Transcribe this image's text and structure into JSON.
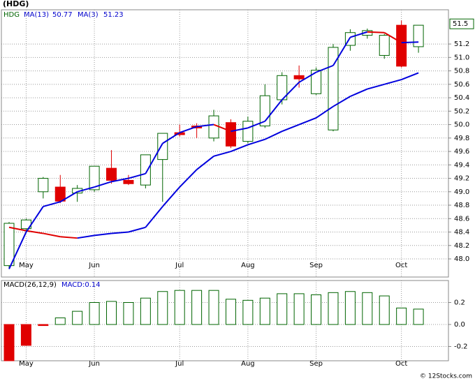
{
  "chart_data": [
    {
      "type": "candlestick",
      "title": "(HDG)",
      "categories": [
        null,
        "May",
        null,
        null,
        null,
        "Jun",
        null,
        null,
        null,
        null,
        "Jul",
        null,
        null,
        null,
        "Aug",
        null,
        null,
        null,
        "Sep",
        null,
        null,
        null,
        null,
        "Oct",
        null
      ],
      "candles": {
        "name": "HDG",
        "up_color": "#006400",
        "down_color": "#e00000",
        "open": [
          47.9,
          48.45,
          49.0,
          49.07,
          48.98,
          49.03,
          49.35,
          49.17,
          49.1,
          49.48,
          49.88,
          49.98,
          49.8,
          50.03,
          49.75,
          49.98,
          50.37,
          50.73,
          50.46,
          49.92,
          51.18,
          51.33,
          51.03,
          51.48,
          51.16
        ],
        "high": [
          48.55,
          48.6,
          49.22,
          49.25,
          49.1,
          49.38,
          49.62,
          49.25,
          49.55,
          49.87,
          50.0,
          50.02,
          50.22,
          50.08,
          50.12,
          50.6,
          50.78,
          50.88,
          50.85,
          51.2,
          51.42,
          51.43,
          51.35,
          51.55,
          51.48
        ],
        "low": [
          47.85,
          48.4,
          48.9,
          48.83,
          48.85,
          49.0,
          49.12,
          49.1,
          49.05,
          48.85,
          49.82,
          49.8,
          49.75,
          49.65,
          49.72,
          49.95,
          50.3,
          50.55,
          50.44,
          49.9,
          51.1,
          51.28,
          50.98,
          50.85,
          51.07
        ],
        "close": [
          48.53,
          48.58,
          49.2,
          48.86,
          49.05,
          49.38,
          49.17,
          49.12,
          49.55,
          49.87,
          49.85,
          49.95,
          50.13,
          49.68,
          50.05,
          50.43,
          50.73,
          50.68,
          50.81,
          51.15,
          51.37,
          51.4,
          51.33,
          50.87,
          51.48
        ]
      },
      "lines": [
        {
          "name": "MA(13)",
          "last": 50.77,
          "color": "#0000dd",
          "down_color": "#e00000",
          "values": [
            48.47,
            48.42,
            48.38,
            48.33,
            48.31,
            48.35,
            48.38,
            48.4,
            48.47,
            48.78,
            49.07,
            49.33,
            49.53,
            49.6,
            49.7,
            49.78,
            49.9,
            50.0,
            50.1,
            50.27,
            50.42,
            50.53,
            50.6,
            50.67,
            50.77
          ]
        },
        {
          "name": "MA(3)",
          "last": 51.23,
          "color": "#0000dd",
          "down_color": "#e00000",
          "values": [
            47.85,
            48.4,
            48.78,
            48.85,
            49.0,
            49.07,
            49.15,
            49.2,
            49.27,
            49.72,
            49.88,
            49.97,
            50.0,
            49.9,
            49.95,
            50.05,
            50.37,
            50.63,
            50.78,
            50.88,
            51.3,
            51.38,
            51.37,
            51.22,
            51.23
          ]
        }
      ],
      "last_price": 51.5,
      "ylim": [
        47.73,
        51.71
      ],
      "yticks": [
        {
          "value": 48,
          "label": "48.0"
        },
        48.2,
        48.4,
        48.6,
        48.8,
        {
          "value": 49,
          "label": "49.0"
        },
        49.2,
        49.4,
        49.6,
        49.8,
        {
          "value": 50,
          "label": "50.0"
        },
        50.2,
        50.4,
        50.6,
        50.8,
        {
          "value": 51,
          "label": "51.0"
        },
        51.2
      ],
      "grid": true
    },
    {
      "type": "bar",
      "title": "MACD(26,12,9)",
      "legend": "MACD:0.14",
      "categories": [
        null,
        "May",
        null,
        null,
        null,
        "Jun",
        null,
        null,
        null,
        null,
        "Jul",
        null,
        null,
        null,
        "Aug",
        null,
        null,
        null,
        "Sep",
        null,
        null,
        null,
        null,
        "Oct",
        null
      ],
      "series": [
        {
          "name": "MACD",
          "up_color": "#006400",
          "down_color": "#e00000",
          "values": [
            -0.33,
            -0.19,
            -0.01,
            0.06,
            0.12,
            0.2,
            0.21,
            0.2,
            0.24,
            0.3,
            0.31,
            0.31,
            0.31,
            0.23,
            0.22,
            0.24,
            0.28,
            0.28,
            0.27,
            0.29,
            0.3,
            0.29,
            0.26,
            0.15,
            0.14
          ]
        }
      ],
      "ylim": [
        -0.33,
        0.4
      ],
      "yticks": [
        -0.2,
        {
          "value": 0,
          "label": "0.0"
        },
        0.2
      ],
      "grid": true
    }
  ],
  "footer": "© 12Stocks.com"
}
